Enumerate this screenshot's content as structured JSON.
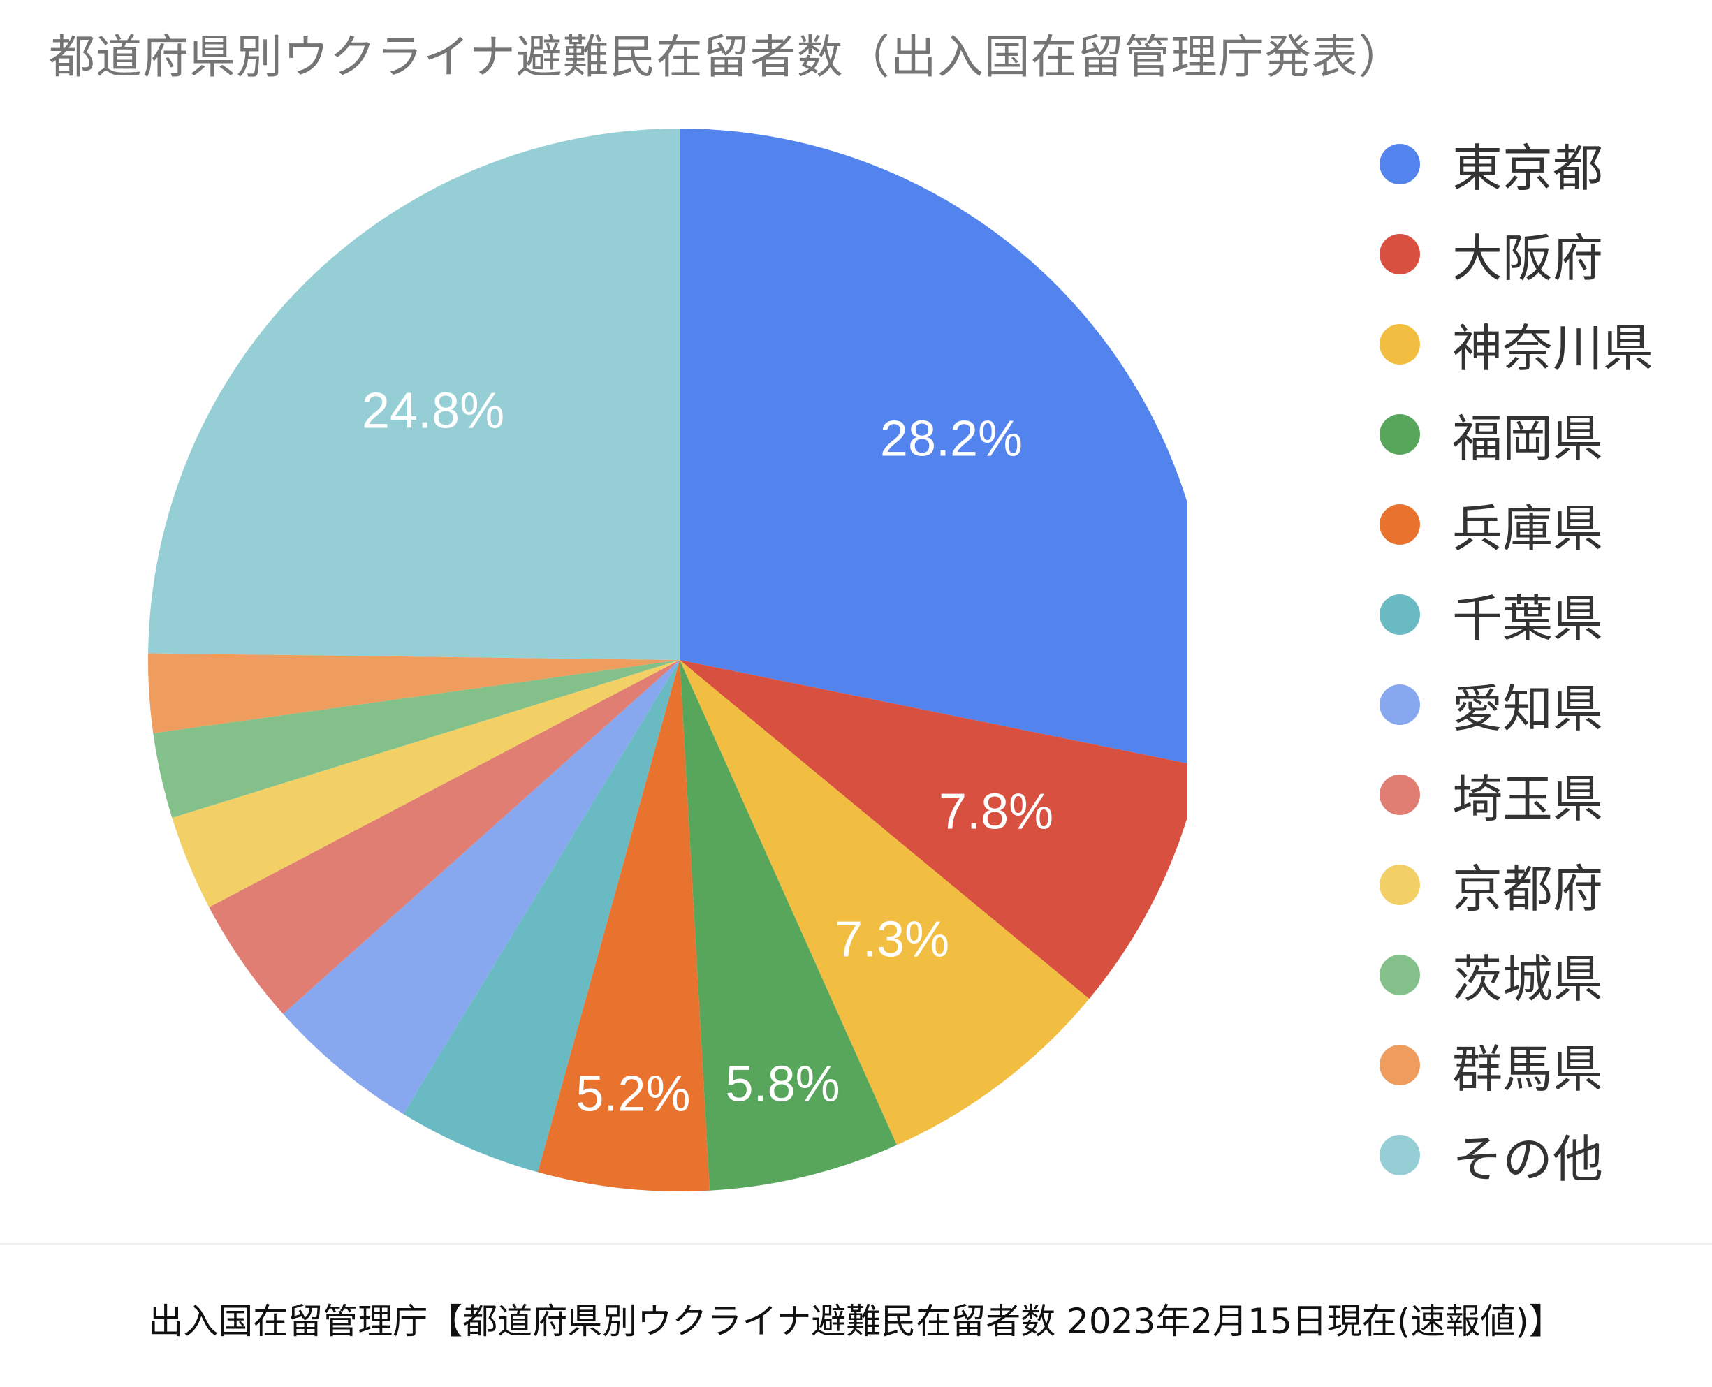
{
  "chart_data": {
    "type": "pie",
    "title": "都道府県別ウクライナ避難民在留者数（出入国在留管理庁発表）",
    "legend_position": "right",
    "slices": [
      {
        "label": "東京都",
        "value": 28.2,
        "color": "#5383EC",
        "show_label": true
      },
      {
        "label": "大阪府",
        "value": 7.8,
        "color": "#D85140",
        "show_label": true
      },
      {
        "label": "神奈川県",
        "value": 7.3,
        "color": "#F1BE42",
        "show_label": true
      },
      {
        "label": "福岡県",
        "value": 5.8,
        "color": "#58A65C",
        "show_label": true
      },
      {
        "label": "兵庫県",
        "value": 5.2,
        "color": "#E8732F",
        "show_label": true
      },
      {
        "label": "千葉県",
        "value": 4.4,
        "color": "#6ABAC3",
        "show_label": false
      },
      {
        "label": "愛知県",
        "value": 4.7,
        "color": "#87A8EE",
        "show_label": false
      },
      {
        "label": "埼玉県",
        "value": 3.9,
        "color": "#E07E73",
        "show_label": false
      },
      {
        "label": "京都府",
        "value": 2.9,
        "color": "#F3D066",
        "show_label": false
      },
      {
        "label": "茨城県",
        "value": 2.6,
        "color": "#84C18A",
        "show_label": false
      },
      {
        "label": "群馬県",
        "value": 2.4,
        "color": "#EF9D5E",
        "show_label": false
      },
      {
        "label": "その他",
        "value": 24.8,
        "color": "#95CED5",
        "show_label": true
      }
    ]
  },
  "caption": "出入国在留管理庁【都道府県別ウクライナ避難民在留者数 2023年2月15日現在(速報値)】"
}
